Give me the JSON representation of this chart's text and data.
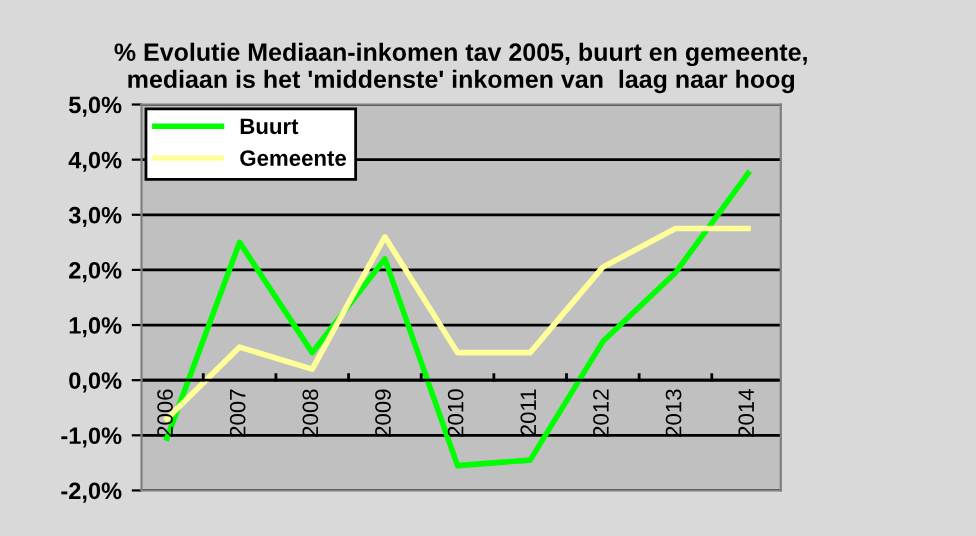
{
  "chart_data": {
    "type": "line",
    "title": "% Evolutie Mediaan-inkomen tav 2005, buurt en gemeente,\nmediaan is het 'middenste' inkomen van  laag naar hoog",
    "categories": [
      "2006",
      "2007",
      "2008",
      "2009",
      "2010",
      "2011",
      "2012",
      "2013",
      "2014"
    ],
    "series": [
      {
        "name": "Buurt",
        "color": "#00ff00",
        "values": [
          -1.05,
          2.5,
          0.5,
          2.2,
          -1.55,
          -1.45,
          0.7,
          1.95,
          3.75
        ]
      },
      {
        "name": "Gemeente",
        "color": "#ffff99",
        "values": [
          -0.7,
          0.6,
          0.2,
          2.6,
          0.5,
          0.5,
          2.05,
          2.75,
          2.75
        ]
      }
    ],
    "ylim": [
      -2,
      5
    ],
    "yticks": [
      {
        "value": -2,
        "label": "-2,0%"
      },
      {
        "value": -1,
        "label": "-1,0%"
      },
      {
        "value": 0,
        "label": "0,0%"
      },
      {
        "value": 1,
        "label": "1,0%"
      },
      {
        "value": 2,
        "label": "2,0%"
      },
      {
        "value": 3,
        "label": "3,0%"
      },
      {
        "value": 4,
        "label": "4,0%"
      },
      {
        "value": 5,
        "label": "5,0%"
      }
    ],
    "grid": "y",
    "legend": "top left",
    "marker": "none",
    "line_style": "solid"
  }
}
